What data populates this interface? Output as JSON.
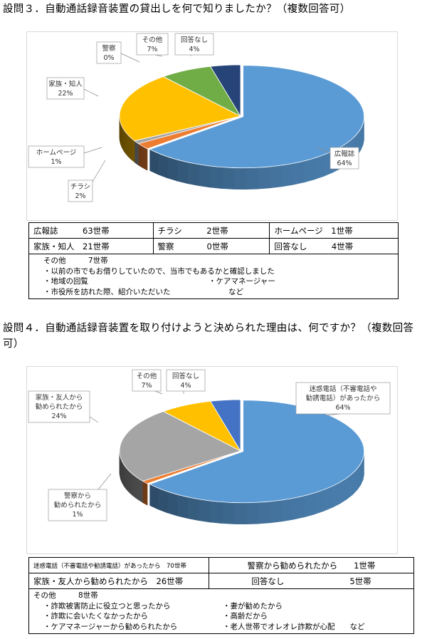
{
  "q3": {
    "title": "設問３．自動通話録音装置の貸出しを何で知りましたか？（複数回答可）",
    "chart_data": {
      "type": "pie",
      "slices": [
        {
          "label": "広報誌",
          "value": 64,
          "display": "64%",
          "color": "#5b9bd5"
        },
        {
          "label": "チラシ",
          "value": 2,
          "display": "2%",
          "color": "#ed7d31"
        },
        {
          "label": "ホームページ",
          "value": 1,
          "display": "1%",
          "color": "#a5a5a5"
        },
        {
          "label": "家族・知人",
          "value": 22,
          "display": "22%",
          "color": "#ffc000"
        },
        {
          "label": "警察",
          "value": 0,
          "display": "0%",
          "color": "#4472c4"
        },
        {
          "label": "その他",
          "value": 7,
          "display": "7%",
          "color": "#70ad47"
        },
        {
          "label": "回答なし",
          "value": 4,
          "display": "4%",
          "color": "#264478"
        }
      ]
    },
    "table": {
      "rows": [
        [
          "広報誌　　　63世帯",
          "チラシ　　　2世帯",
          "ホームページ　1世帯"
        ],
        [
          "家族・知人　21世帯",
          "警察　　　　0世帯",
          "回答なし　　　4世帯"
        ]
      ],
      "other_head": "その他　　　7世帯",
      "notes": [
        [
          "・以前の市でもお借りしていたので、当市でもあるかと確認しました",
          ""
        ],
        [
          "・地域の回覧",
          "・ケアマネージャー"
        ],
        [
          "・市役所を訪れた際、紹介いただいた",
          "など"
        ]
      ]
    }
  },
  "q4": {
    "title": "設問４．自動通話録音装置を取り付けようと決められた理由は、何ですか？（複数回答可）",
    "chart_data": {
      "type": "pie",
      "slices": [
        {
          "label": "迷惑電話（不審電話や勧誘電話）があったから",
          "label_lines": [
            "迷惑電話（不審電話や",
            "勧誘電話）があったから"
          ],
          "value": 64,
          "display": "64%",
          "color": "#5b9bd5"
        },
        {
          "label": "警察から勧められたから",
          "label_lines": [
            "警察から",
            "勧められたから"
          ],
          "value": 1,
          "display": "1%",
          "color": "#ed7d31"
        },
        {
          "label": "家族・友人から勧められたから",
          "label_lines": [
            "家族・友人から",
            "勧められたから"
          ],
          "value": 24,
          "display": "24%",
          "color": "#a5a5a5"
        },
        {
          "label": "その他",
          "label_lines": [
            "その他"
          ],
          "value": 7,
          "display": "7%",
          "color": "#ffc000"
        },
        {
          "label": "回答なし",
          "label_lines": [
            "回答なし"
          ],
          "value": 4,
          "display": "4%",
          "color": "#4472c4"
        }
      ]
    },
    "table": {
      "row1": [
        "迷惑電話（不審電話や勧誘電話）があったから　70世帯",
        "警察から勧められたから　　1世帯"
      ],
      "row2": [
        "家族・友人から勧められたから　26世帯",
        "回答なし　　　　　　　　5世帯"
      ],
      "other_head": "その他　　　8世帯",
      "notes": [
        [
          "・詐欺被害防止に役立つと思ったから",
          "・妻が勧めたから"
        ],
        [
          "・詐欺に会いたくなかったから",
          "・高齢だから"
        ],
        [
          "・ケアマネージャーから勧められたから",
          "・老人世帯でオレオレ詐欺が心配　　など"
        ]
      ]
    }
  }
}
